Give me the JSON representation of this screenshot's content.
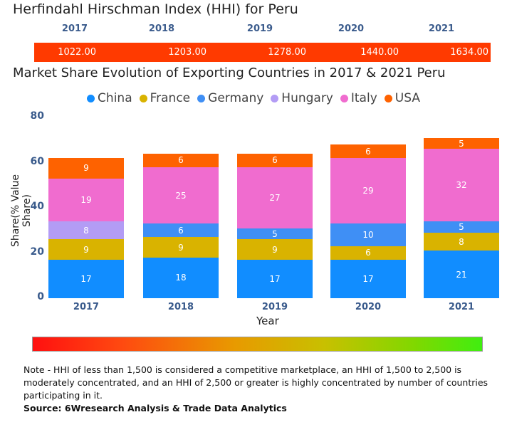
{
  "hhi": {
    "title": "Herfindahl Hirschman Index (HHI) for Peru",
    "years": [
      "2017",
      "2018",
      "2019",
      "2020",
      "2021"
    ],
    "values": [
      "1022.00",
      "1203.00",
      "1278.00",
      "1440.00",
      "1634.00"
    ],
    "bar_color": "#ff3a00"
  },
  "chart_data": {
    "type": "bar",
    "stacked": true,
    "title": "Market Share Evolution of Exporting Countries in 2017 & 2021 Peru",
    "xlabel": "Year",
    "ylabel": "Share(% Value Share)",
    "ylim": [
      0,
      80
    ],
    "yticks": [
      "0",
      "20",
      "40",
      "60",
      "80"
    ],
    "categories": [
      "2017",
      "2018",
      "2019",
      "2020",
      "2021"
    ],
    "series": [
      {
        "name": "China",
        "color": "#118dff",
        "values": [
          17,
          18,
          17,
          17,
          21
        ]
      },
      {
        "name": "France",
        "color": "#d9b300",
        "values": [
          9,
          9,
          9,
          6,
          8
        ]
      },
      {
        "name": "Germany",
        "color": "#3f8ff5",
        "values": [
          null,
          6,
          5,
          10,
          5
        ]
      },
      {
        "name": "Hungary",
        "color": "#b39cf5",
        "values": [
          8,
          null,
          null,
          null,
          null
        ]
      },
      {
        "name": "Italy",
        "color": "#f06ccf",
        "values": [
          19,
          25,
          27,
          29,
          32
        ]
      },
      {
        "name": "USA",
        "color": "#fe6200",
        "values": [
          9,
          6,
          6,
          6,
          5
        ]
      }
    ],
    "legend": "top"
  },
  "note": "Note - HHI of less than 1,500 is considered a competitive marketplace, an HHI of 1,500 to 2,500 is moderately concentrated, and an HHI of 2,500 or greater is highly concentrated by number of countries participating in it.",
  "source": "Source: 6Wresearch Analysis & Trade Data Analytics"
}
